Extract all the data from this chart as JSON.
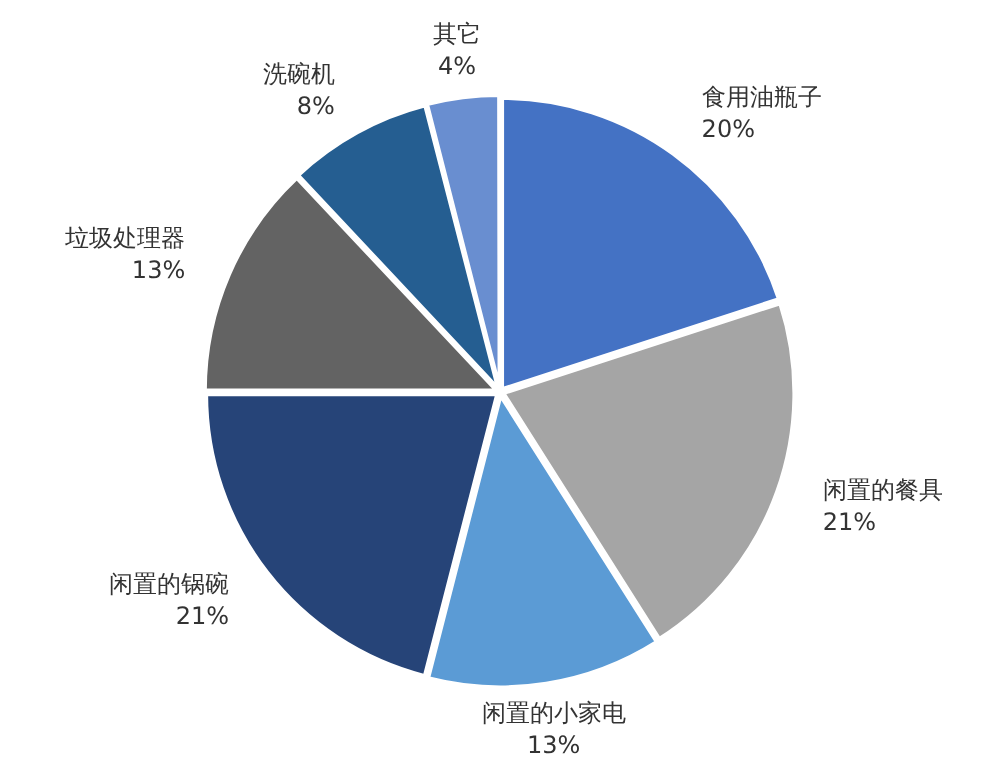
{
  "chart_data": {
    "type": "pie",
    "categories": [
      "食用油瓶子",
      "闲置的餐具",
      "闲置的小家电",
      "闲置的锅碗",
      "垃圾处理器",
      "洗碗机",
      "其它"
    ],
    "values": [
      20,
      21,
      13,
      21,
      13,
      8,
      4
    ],
    "colors": [
      "#4472c4",
      "#a5a5a5",
      "#5b9bd5",
      "#264478",
      "#636363",
      "#255e91",
      "#698ed0"
    ],
    "value_labels": [
      "20%",
      "21%",
      "13%",
      "21%",
      "13%",
      "8%",
      "4%"
    ],
    "legend": false
  }
}
